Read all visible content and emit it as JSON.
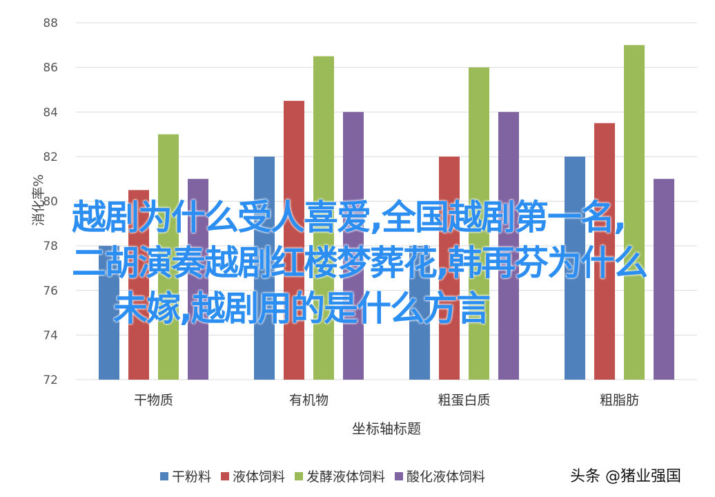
{
  "chart_data": {
    "type": "bar",
    "categories": [
      "干物质",
      "有机物",
      "粗蛋白质",
      "粗脂肪"
    ],
    "series": [
      {
        "name": "干粉料",
        "color": "#4f81bd",
        "values": [
          78,
          82,
          78,
          82
        ]
      },
      {
        "name": "液体饲料",
        "color": "#c0504d",
        "values": [
          80.5,
          84.5,
          82,
          83.5
        ]
      },
      {
        "name": "发酵液体饲料",
        "color": "#9bbb59",
        "values": [
          83,
          86.5,
          86,
          87
        ]
      },
      {
        "name": "酸化液体饲料",
        "color": "#8064a2",
        "values": [
          81,
          84,
          84,
          81
        ]
      }
    ],
    "xlabel": "坐标轴标题",
    "ylabel": "消化率%",
    "ylim": [
      72,
      88
    ],
    "yticks": [
      "72",
      "74",
      "76",
      "78",
      "80",
      "82",
      "84",
      "86",
      "88"
    ],
    "grid": true,
    "legend": "bottom"
  },
  "overlay_title": [
    "越剧为什么受人喜爱,全国越剧第一名,",
    "二胡演奏越剧红楼梦葬花,韩再芬为什么",
    "未嫁,越剧用的是什么方言"
  ],
  "watermark": "头条 @猪业强国"
}
